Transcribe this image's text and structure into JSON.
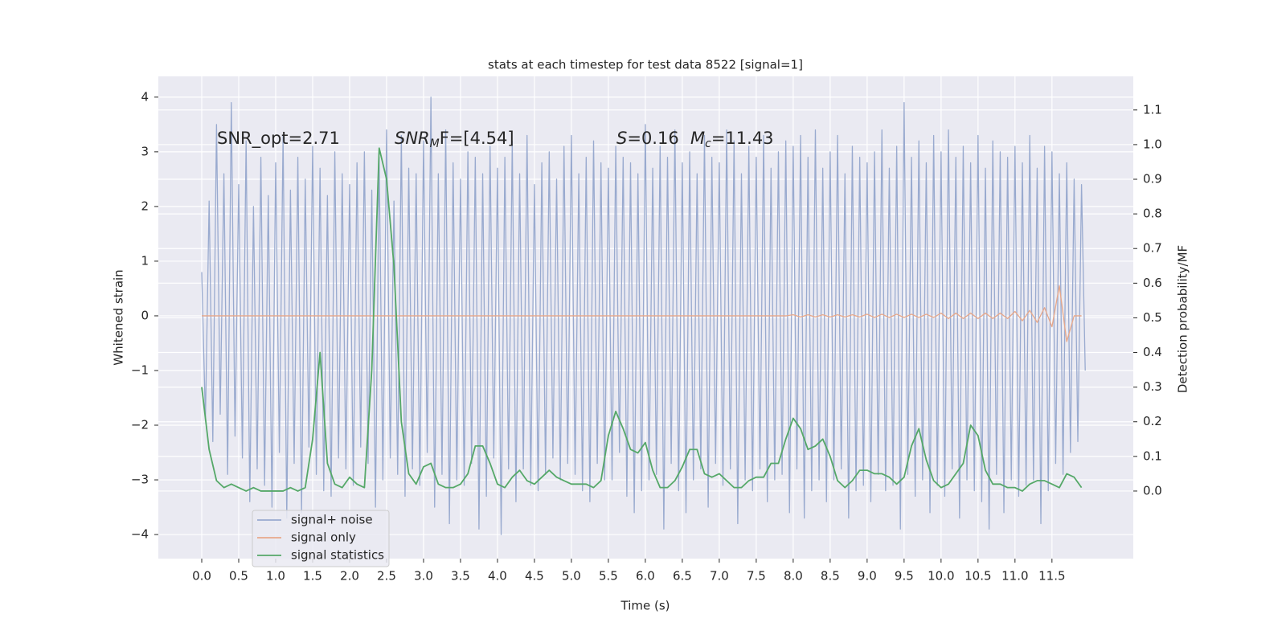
{
  "chart_data": {
    "type": "line",
    "title": "stats at each timestep for test data 8522 [signal=1]",
    "xlabel": "Time (s)",
    "ylabel": "Whitened strain",
    "y2label": "Detection probability/MF",
    "annotations": [
      "SNR_opt=2.71",
      {
        "main": "SNR",
        "sub": "M",
        "rest": "F=[4.54]"
      },
      {
        "main": "S",
        "rest": "=0.16"
      },
      {
        "main": "M",
        "sub": "c",
        "rest": "=11.43"
      }
    ],
    "xlim": [
      -0.587,
      12.6
    ],
    "ylim": [
      -4.44,
      4.38
    ],
    "y2lim": [
      -0.195,
      1.197
    ],
    "xticks": [
      {
        "value": 0,
        "label": "0.0"
      },
      0.5,
      {
        "value": 1,
        "label": "1.0"
      },
      1.5,
      {
        "value": 2,
        "label": "2.0"
      },
      2.5,
      {
        "value": 3,
        "label": "3.0"
      },
      3.5,
      {
        "value": 4,
        "label": "4.0"
      },
      4.5,
      {
        "value": 5,
        "label": "5.0"
      },
      5.5,
      {
        "value": 6,
        "label": "6.0"
      },
      6.5,
      {
        "value": 7,
        "label": "7.0"
      },
      7.5,
      {
        "value": 8,
        "label": "8.0"
      },
      8.5,
      {
        "value": 9,
        "label": "9.0"
      },
      9.5,
      {
        "value": 10,
        "label": "10.0"
      },
      10.5,
      {
        "value": 11,
        "label": "11.0"
      },
      11.5
    ],
    "yticks": [
      {
        "value": -4,
        "label": "−4"
      },
      {
        "value": -3,
        "label": "−3"
      },
      {
        "value": -2,
        "label": "−2"
      },
      {
        "value": -1,
        "label": "−1"
      },
      0,
      1,
      2,
      3,
      4
    ],
    "y2ticks": [
      {
        "value": 0,
        "label": "0.0"
      },
      0.1,
      0.2,
      0.3,
      0.4,
      0.5,
      0.6,
      0.7,
      0.8,
      0.9,
      {
        "value": 1,
        "label": "1.0"
      },
      1.1
    ],
    "grid": true,
    "legend": "lower left",
    "series": [
      {
        "name": "signal+ noise",
        "color": "#99aacf",
        "x": [
          0,
          0.05,
          0.1,
          0.15,
          0.2,
          0.25,
          0.3,
          0.35,
          0.4,
          0.45,
          0.5,
          0.55,
          0.6,
          0.65,
          0.7,
          0.75,
          0.8,
          0.85,
          0.9,
          0.95,
          1,
          1.05,
          1.1,
          1.15,
          1.2,
          1.25,
          1.3,
          1.35,
          1.4,
          1.45,
          1.5,
          1.55,
          1.6,
          1.65,
          1.7,
          1.75,
          1.8,
          1.85,
          1.9,
          1.95,
          2,
          2.05,
          2.1,
          2.15,
          2.2,
          2.25,
          2.3,
          2.35,
          2.4,
          2.45,
          2.5,
          2.55,
          2.6,
          2.65,
          2.7,
          2.75,
          2.8,
          2.85,
          2.9,
          2.95,
          3,
          3.05,
          3.1,
          3.15,
          3.2,
          3.25,
          3.3,
          3.35,
          3.4,
          3.45,
          3.5,
          3.55,
          3.6,
          3.65,
          3.7,
          3.75,
          3.8,
          3.85,
          3.9,
          3.95,
          4,
          4.05,
          4.1,
          4.15,
          4.2,
          4.25,
          4.3,
          4.35,
          4.4,
          4.45,
          4.5,
          4.55,
          4.6,
          4.65,
          4.7,
          4.75,
          4.8,
          4.85,
          4.9,
          4.95,
          5,
          5.05,
          5.1,
          5.15,
          5.2,
          5.25,
          5.3,
          5.35,
          5.4,
          5.45,
          5.5,
          5.55,
          5.6,
          5.65,
          5.7,
          5.75,
          5.8,
          5.85,
          5.9,
          5.95,
          6,
          6.05,
          6.1,
          6.15,
          6.2,
          6.25,
          6.3,
          6.35,
          6.4,
          6.45,
          6.5,
          6.55,
          6.6,
          6.65,
          6.7,
          6.75,
          6.8,
          6.85,
          6.9,
          6.95,
          7,
          7.05,
          7.1,
          7.15,
          7.2,
          7.25,
          7.3,
          7.35,
          7.4,
          7.45,
          7.5,
          7.55,
          7.6,
          7.65,
          7.7,
          7.75,
          7.8,
          7.85,
          7.9,
          7.95,
          8,
          8.05,
          8.1,
          8.15,
          8.2,
          8.25,
          8.3,
          8.35,
          8.4,
          8.45,
          8.5,
          8.55,
          8.6,
          8.65,
          8.7,
          8.75,
          8.8,
          8.85,
          8.9,
          8.95,
          9,
          9.05,
          9.1,
          9.15,
          9.2,
          9.25,
          9.3,
          9.35,
          9.4,
          9.45,
          9.5,
          9.55,
          9.6,
          9.65,
          9.7,
          9.75,
          9.8,
          9.85,
          9.9,
          9.95,
          10,
          10.05,
          10.1,
          10.15,
          10.2,
          10.25,
          10.3,
          10.35,
          10.4,
          10.45,
          10.5,
          10.55,
          10.6,
          10.65,
          10.7,
          10.75,
          10.8,
          10.85,
          10.9,
          10.95,
          11,
          11.05,
          11.1,
          11.15,
          11.2,
          11.25,
          11.3,
          11.35,
          11.4,
          11.45,
          11.5,
          11.55,
          11.6,
          11.65,
          11.7,
          11.75,
          11.8,
          11.85,
          11.9,
          11.95
        ],
        "values": [
          0.8,
          -1.9,
          2.1,
          -2.3,
          3.5,
          -1.8,
          2.6,
          -2.9,
          3.9,
          -2.2,
          2.4,
          -2.6,
          3.2,
          -3.4,
          2.0,
          -2.8,
          2.9,
          -3.1,
          2.2,
          -3.5,
          2.8,
          -2.5,
          3.3,
          -3.7,
          2.3,
          -2.7,
          2.9,
          -3.6,
          2.5,
          -2.4,
          3.1,
          -2.9,
          2.7,
          -3.2,
          2.2,
          -3.3,
          3.0,
          -2.6,
          2.6,
          -2.8,
          2.4,
          -3.1,
          2.8,
          -2.4,
          3.0,
          -2.7,
          2.3,
          -3.5,
          2.9,
          -3.0,
          3.4,
          -2.6,
          2.1,
          -2.9,
          3.3,
          -3.3,
          2.7,
          -2.8,
          2.6,
          -3.1,
          3.2,
          -2.5,
          4.0,
          -3.5,
          2.6,
          -2.9,
          3.4,
          -3.8,
          2.8,
          -3.0,
          2.5,
          -3.1,
          3.0,
          -2.7,
          2.9,
          -3.9,
          2.6,
          -3.3,
          3.1,
          -2.6,
          2.7,
          -4.0,
          2.9,
          -2.8,
          3.2,
          -3.4,
          2.6,
          -2.8,
          3.3,
          -3.1,
          2.4,
          -3.2,
          2.8,
          -2.9,
          3.0,
          -2.6,
          2.5,
          -3.0,
          3.1,
          -2.7,
          3.3,
          -2.9,
          2.6,
          -3.2,
          2.9,
          -3.4,
          3.2,
          -2.7,
          2.8,
          -3.0,
          2.7,
          -3.0,
          3.1,
          -2.5,
          2.9,
          -3.3,
          2.8,
          -3.6,
          2.6,
          -3.2,
          3.5,
          -3.0,
          2.7,
          -2.9,
          3.1,
          -3.9,
          2.9,
          -2.7,
          3.4,
          -3.2,
          2.8,
          -3.6,
          3.0,
          -3.0,
          2.6,
          -2.8,
          3.3,
          -3.5,
          2.9,
          -2.7,
          2.8,
          -3.1,
          3.4,
          -2.8,
          3.2,
          -3.8,
          2.6,
          -3.0,
          3.1,
          -3.2,
          2.9,
          -2.8,
          3.3,
          -3.4,
          2.7,
          -3.0,
          3.0,
          -2.9,
          3.2,
          -3.6,
          3.1,
          -2.8,
          3.3,
          -3.7,
          2.9,
          -3.2,
          3.4,
          -3.0,
          2.7,
          -3.4,
          3.0,
          -3.0,
          3.3,
          -2.8,
          2.6,
          -3.7,
          3.1,
          -3.2,
          2.9,
          -3.1,
          2.8,
          -3.4,
          3.0,
          -2.9,
          3.4,
          -3.2,
          2.7,
          -3.1,
          3.1,
          -3.9,
          3.9,
          -2.9,
          2.9,
          -3.3,
          3.2,
          -3.0,
          2.8,
          -3.6,
          3.3,
          -3.1,
          3.0,
          -3.3,
          3.4,
          -2.8,
          2.9,
          -3.7,
          3.1,
          -3.0,
          2.8,
          -3.2,
          3.3,
          -3.4,
          2.7,
          -3.9,
          3.2,
          -2.9,
          3.0,
          -3.6,
          2.9,
          -3.0,
          3.1,
          -3.3,
          2.8,
          -3.1,
          3.3,
          -3.0,
          2.7,
          -3.8,
          3.1,
          -3.2,
          3.0,
          -2.7,
          2.6,
          -2.9,
          2.8,
          -2.5,
          2.5,
          -2.3,
          2.4,
          -1.0
        ]
      },
      {
        "name": "signal only",
        "color": "#e8a88a",
        "x": [
          0,
          0.1,
          0.2,
          0.3,
          0.4,
          0.5,
          0.6,
          0.7,
          0.8,
          0.9,
          1,
          1.1,
          1.2,
          1.3,
          1.4,
          1.5,
          1.6,
          1.7,
          1.8,
          1.9,
          2,
          2.1,
          2.2,
          2.3,
          2.4,
          2.5,
          2.6,
          2.7,
          2.8,
          2.9,
          3,
          3.1,
          3.2,
          3.3,
          3.4,
          3.5,
          3.6,
          3.7,
          3.8,
          3.9,
          4,
          4.1,
          4.2,
          4.3,
          4.4,
          4.5,
          4.6,
          4.7,
          4.8,
          4.9,
          5,
          5.1,
          5.2,
          5.3,
          5.4,
          5.5,
          5.6,
          5.7,
          5.8,
          5.9,
          6,
          6.1,
          6.2,
          6.3,
          6.4,
          6.5,
          6.6,
          6.7,
          6.8,
          6.9,
          7,
          7.1,
          7.2,
          7.3,
          7.4,
          7.5,
          7.6,
          7.7,
          7.8,
          7.9,
          8,
          8.1,
          8.2,
          8.3,
          8.4,
          8.5,
          8.6,
          8.7,
          8.8,
          8.9,
          9,
          9.1,
          9.2,
          9.3,
          9.4,
          9.5,
          9.6,
          9.7,
          9.8,
          9.9,
          10,
          10.1,
          10.2,
          10.3,
          10.4,
          10.5,
          10.6,
          10.7,
          10.8,
          10.9,
          11,
          11.1,
          11.2,
          11.3,
          11.4,
          11.5,
          11.6,
          11.7,
          11.8,
          11.9
        ],
        "values": [
          0,
          0,
          0,
          0,
          0,
          0,
          0,
          0,
          0,
          0,
          0,
          0,
          0,
          0,
          0,
          0,
          0,
          0,
          0,
          0,
          0,
          0,
          0,
          0,
          0,
          0,
          0,
          0,
          0,
          0,
          0,
          0,
          0,
          0,
          0,
          0,
          0,
          0,
          0,
          0,
          0,
          0,
          0,
          0,
          0,
          0,
          0,
          0,
          0,
          0,
          0,
          0,
          0,
          0,
          0,
          0,
          0,
          0,
          0,
          0,
          0,
          0,
          0,
          0,
          0,
          0,
          0,
          0,
          0,
          0,
          0,
          0,
          0,
          0,
          0,
          0,
          0,
          0,
          0,
          0,
          0.02,
          -0.02,
          0.02,
          -0.02,
          0.02,
          -0.02,
          0.02,
          -0.02,
          0.02,
          -0.02,
          0.03,
          -0.03,
          0.03,
          -0.03,
          0.03,
          -0.03,
          0.03,
          -0.03,
          0.03,
          -0.03,
          0.05,
          -0.05,
          0.05,
          -0.05,
          0.05,
          -0.05,
          0.05,
          -0.05,
          0.05,
          -0.05,
          0.08,
          -0.09,
          0.1,
          -0.12,
          0.15,
          -0.2,
          0.55,
          -0.47,
          0,
          0
        ]
      },
      {
        "name": "signal statistics",
        "color": "#55a868",
        "axis": "y2",
        "x": [
          0,
          0.1,
          0.2,
          0.3,
          0.4,
          0.5,
          0.6,
          0.7,
          0.8,
          0.9,
          1,
          1.1,
          1.2,
          1.3,
          1.4,
          1.5,
          1.6,
          1.7,
          1.8,
          1.9,
          2,
          2.1,
          2.2,
          2.3,
          2.4,
          2.5,
          2.6,
          2.7,
          2.8,
          2.9,
          3,
          3.1,
          3.2,
          3.3,
          3.4,
          3.5,
          3.6,
          3.7,
          3.8,
          3.9,
          4,
          4.1,
          4.2,
          4.3,
          4.4,
          4.5,
          4.6,
          4.7,
          4.8,
          4.9,
          5,
          5.1,
          5.2,
          5.3,
          5.4,
          5.5,
          5.6,
          5.7,
          5.8,
          5.9,
          6,
          6.1,
          6.2,
          6.3,
          6.4,
          6.5,
          6.6,
          6.7,
          6.8,
          6.9,
          7,
          7.1,
          7.2,
          7.3,
          7.4,
          7.5,
          7.6,
          7.7,
          7.8,
          7.9,
          8,
          8.1,
          8.2,
          8.3,
          8.4,
          8.5,
          8.6,
          8.7,
          8.8,
          8.9,
          9,
          9.1,
          9.2,
          9.3,
          9.4,
          9.5,
          9.6,
          9.7,
          9.8,
          9.9,
          10,
          10.1,
          10.2,
          10.3,
          10.4,
          10.5,
          10.6,
          10.7,
          10.8,
          10.9,
          11,
          11.1,
          11.2,
          11.3,
          11.4,
          11.5,
          11.6,
          11.7,
          11.8,
          11.9
        ],
        "values": [
          0.3,
          0.12,
          0.03,
          0.01,
          0.02,
          0.01,
          0,
          0.01,
          0,
          0,
          0,
          0,
          0.01,
          0,
          0.01,
          0.15,
          0.4,
          0.08,
          0.02,
          0.01,
          0.04,
          0.02,
          0.01,
          0.35,
          0.99,
          0.9,
          0.65,
          0.2,
          0.05,
          0.02,
          0.07,
          0.08,
          0.02,
          0.01,
          0.01,
          0.02,
          0.05,
          0.13,
          0.13,
          0.08,
          0.02,
          0.01,
          0.04,
          0.06,
          0.03,
          0.02,
          0.04,
          0.06,
          0.04,
          0.03,
          0.02,
          0.02,
          0.02,
          0.01,
          0.03,
          0.16,
          0.23,
          0.18,
          0.12,
          0.11,
          0.14,
          0.06,
          0.01,
          0.01,
          0.03,
          0.07,
          0.12,
          0.12,
          0.05,
          0.04,
          0.05,
          0.03,
          0.01,
          0.01,
          0.03,
          0.04,
          0.04,
          0.08,
          0.08,
          0.15,
          0.21,
          0.18,
          0.12,
          0.13,
          0.15,
          0.1,
          0.03,
          0.01,
          0.03,
          0.06,
          0.06,
          0.05,
          0.05,
          0.04,
          0.02,
          0.04,
          0.13,
          0.18,
          0.09,
          0.03,
          0.01,
          0.02,
          0.05,
          0.08,
          0.19,
          0.16,
          0.06,
          0.02,
          0.02,
          0.01,
          0.01,
          0,
          0.02,
          0.03,
          0.03,
          0.02,
          0.01,
          0.05,
          0.04,
          0.01
        ]
      }
    ]
  }
}
